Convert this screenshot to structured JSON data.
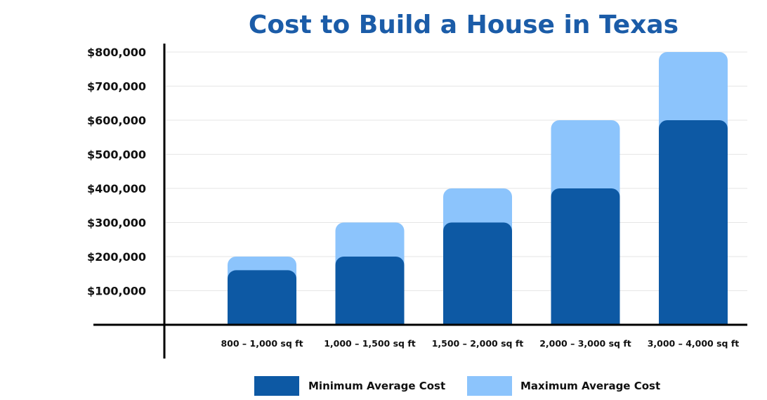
{
  "chart_data": {
    "type": "bar",
    "title": "Cost to Build a House in Texas",
    "categories": [
      "800 – 1,000 sq ft",
      "1,000 – 1,500 sq ft",
      "1,500 – 2,000 sq ft",
      "2,000 – 3,000 sq ft",
      "3,000 – 4,000 sq ft"
    ],
    "series": [
      {
        "name": "Minimum Average Cost",
        "values": [
          160000,
          200000,
          300000,
          400000,
          600000
        ]
      },
      {
        "name": "Maximum Average Cost",
        "values": [
          200000,
          300000,
          400000,
          600000,
          800000
        ]
      }
    ],
    "yticks": [
      100000,
      200000,
      300000,
      400000,
      500000,
      600000,
      700000,
      800000
    ],
    "ytick_labels": [
      "$100,000",
      "$200,000",
      "$300,000",
      "$400,000",
      "$500,000",
      "$600,000",
      "$700,000",
      "$800,000"
    ],
    "ylim": [
      0,
      800000
    ],
    "grid": true,
    "legend_position": "bottom",
    "colors": {
      "min": "#0D59A4",
      "max": "#8CC4FC",
      "title": "#1B5CA8",
      "axis": "#000000",
      "grid": "#E6E6E6"
    }
  }
}
